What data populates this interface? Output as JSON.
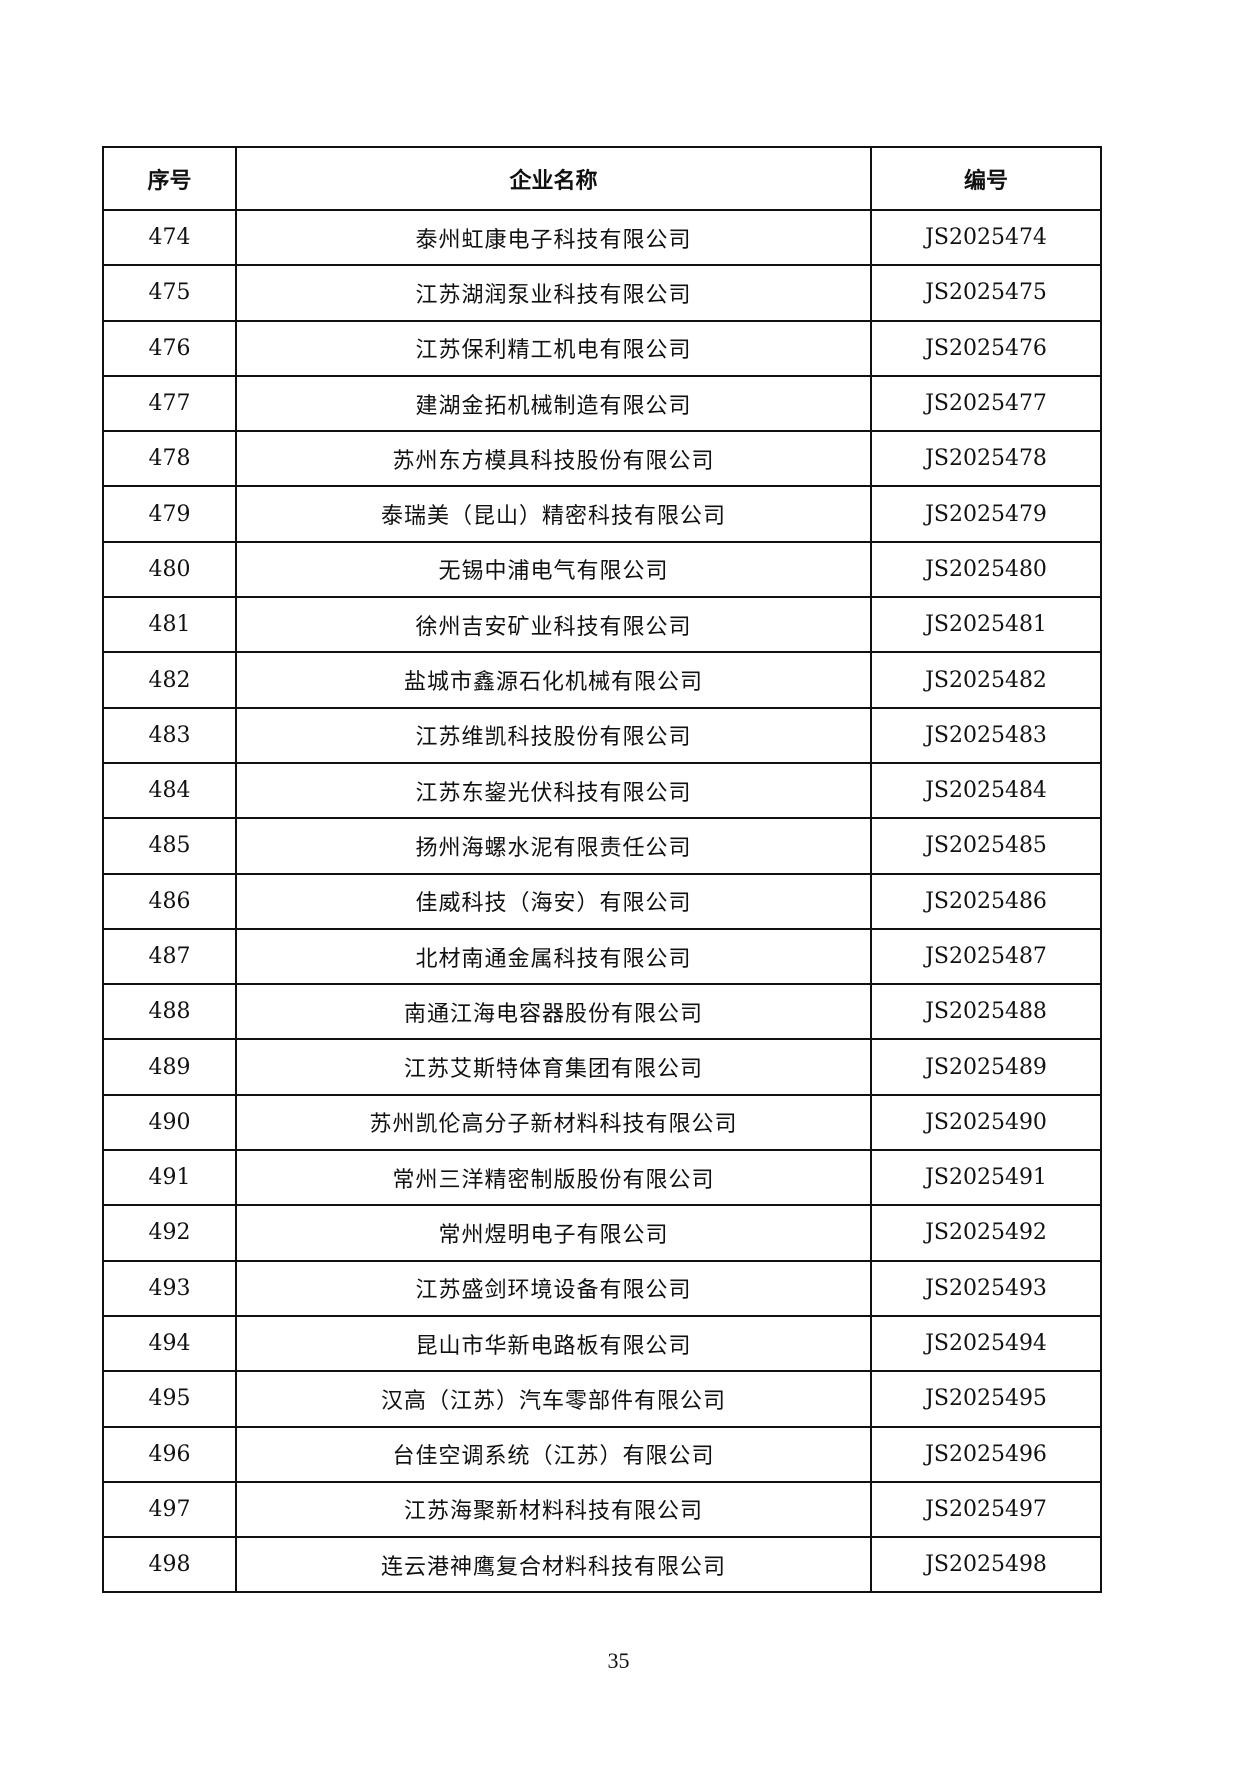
{
  "table": {
    "headers": [
      "序号",
      "企业名称",
      "编号"
    ],
    "rows": [
      [
        "474",
        "泰州虹康电子科技有限公司",
        "JS2025474"
      ],
      [
        "475",
        "江苏湖润泵业科技有限公司",
        "JS2025475"
      ],
      [
        "476",
        "江苏保利精工机电有限公司",
        "JS2025476"
      ],
      [
        "477",
        "建湖金拓机械制造有限公司",
        "JS2025477"
      ],
      [
        "478",
        "苏州东方模具科技股份有限公司",
        "JS2025478"
      ],
      [
        "479",
        "泰瑞美（昆山）精密科技有限公司",
        "JS2025479"
      ],
      [
        "480",
        "无锡中浦电气有限公司",
        "JS2025480"
      ],
      [
        "481",
        "徐州吉安矿业科技有限公司",
        "JS2025481"
      ],
      [
        "482",
        "盐城市鑫源石化机械有限公司",
        "JS2025482"
      ],
      [
        "483",
        "江苏维凯科技股份有限公司",
        "JS2025483"
      ],
      [
        "484",
        "江苏东鋆光伏科技有限公司",
        "JS2025484"
      ],
      [
        "485",
        "扬州海螺水泥有限责任公司",
        "JS2025485"
      ],
      [
        "486",
        "佳威科技（海安）有限公司",
        "JS2025486"
      ],
      [
        "487",
        "北材南通金属科技有限公司",
        "JS2025487"
      ],
      [
        "488",
        "南通江海电容器股份有限公司",
        "JS2025488"
      ],
      [
        "489",
        "江苏艾斯特体育集团有限公司",
        "JS2025489"
      ],
      [
        "490",
        "苏州凯伦高分子新材料科技有限公司",
        "JS2025490"
      ],
      [
        "491",
        "常州三洋精密制版股份有限公司",
        "JS2025491"
      ],
      [
        "492",
        "常州煜明电子有限公司",
        "JS2025492"
      ],
      [
        "493",
        "江苏盛剑环境设备有限公司",
        "JS2025493"
      ],
      [
        "494",
        "昆山市华新电路板有限公司",
        "JS2025494"
      ],
      [
        "495",
        "汉高（江苏）汽车零部件有限公司",
        "JS2025495"
      ],
      [
        "496",
        "台佳空调系统（江苏）有限公司",
        "JS2025496"
      ],
      [
        "497",
        "江苏海聚新材料科技有限公司",
        "JS2025497"
      ],
      [
        "498",
        "连云港神鹰复合材料科技有限公司",
        "JS2025498"
      ]
    ]
  },
  "page_number": "35"
}
